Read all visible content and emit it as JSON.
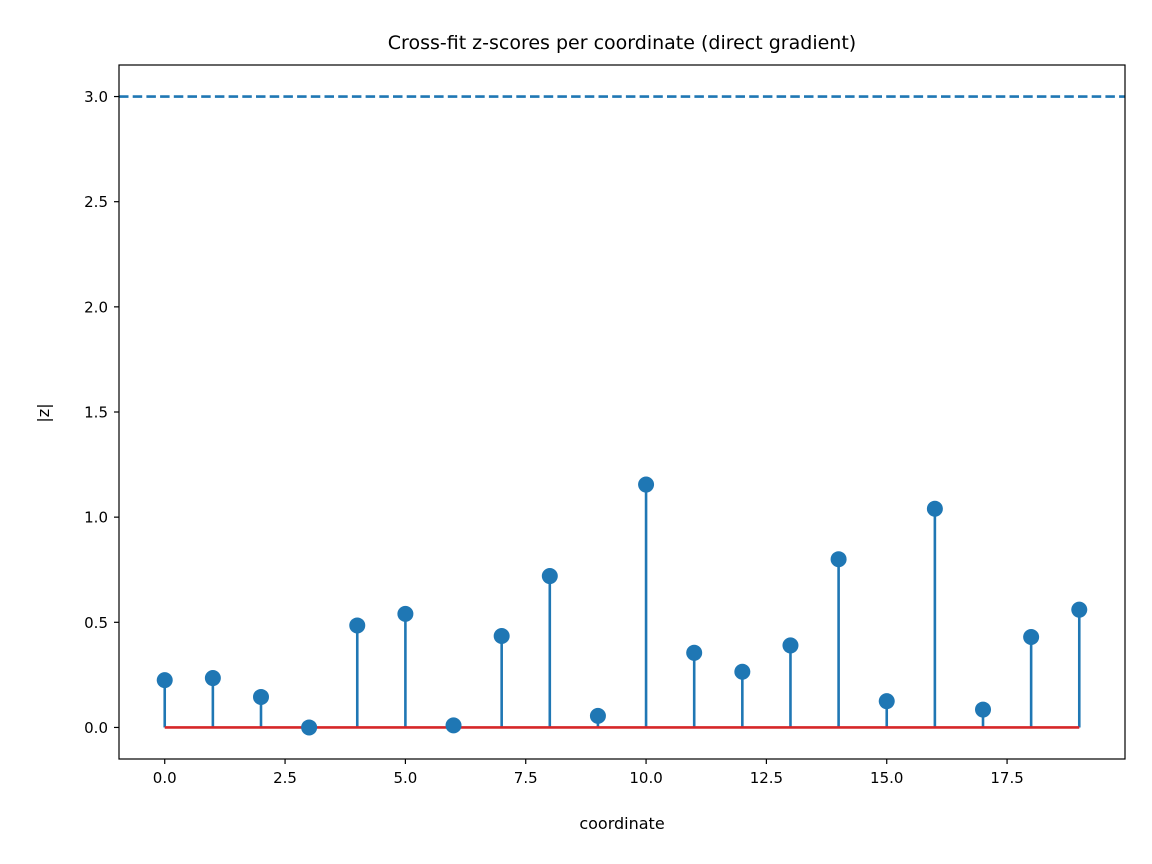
{
  "chart_data": {
    "type": "stem",
    "title": "Cross-fit z-scores per coordinate (direct gradient)",
    "xlabel": "coordinate",
    "ylabel": "|z|",
    "x": [
      0,
      1,
      2,
      3,
      4,
      5,
      6,
      7,
      8,
      9,
      10,
      11,
      12,
      13,
      14,
      15,
      16,
      17,
      18,
      19
    ],
    "y": [
      0.225,
      0.235,
      0.145,
      0.0,
      0.485,
      0.54,
      0.01,
      0.435,
      0.72,
      0.055,
      1.155,
      0.355,
      0.265,
      0.39,
      0.8,
      0.125,
      1.04,
      0.085,
      0.43,
      0.56
    ],
    "xlim": [
      -0.95,
      19.95
    ],
    "ylim": [
      -0.15,
      3.15
    ],
    "xticks": [
      0.0,
      2.5,
      5.0,
      7.5,
      10.0,
      12.5,
      15.0,
      17.5
    ],
    "xtick_labels": [
      "0.0",
      "2.5",
      "5.0",
      "7.5",
      "10.0",
      "12.5",
      "15.0",
      "17.5"
    ],
    "yticks": [
      0.0,
      0.5,
      1.0,
      1.5,
      2.0,
      2.5,
      3.0
    ],
    "ytick_labels": [
      "0.0",
      "0.5",
      "1.0",
      "1.5",
      "2.0",
      "2.5",
      "3.0"
    ],
    "threshold": 3.0,
    "grid": false,
    "colors": {
      "stem": "#1f77b4",
      "marker": "#1f77b4",
      "baseline": "#d62728",
      "threshold": "#1f77b4"
    }
  }
}
